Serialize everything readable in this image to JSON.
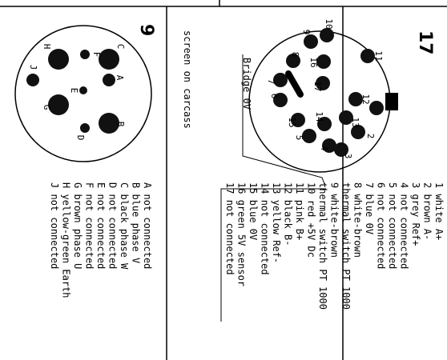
{
  "connector_17": {
    "title": "17",
    "screen_label": "screen on carcass",
    "bridge_label": "Bridge 0V",
    "pins": [
      {
        "n": "1",
        "desc": "white A+"
      },
      {
        "n": "2",
        "desc": "brown A-"
      },
      {
        "n": "3",
        "desc": "grey Ref+"
      },
      {
        "n": "4",
        "desc": "not connected"
      },
      {
        "n": "5",
        "desc": "not connected"
      },
      {
        "n": "6",
        "desc": "not connected"
      },
      {
        "n": "7",
        "desc": "blue 0V"
      },
      {
        "n": "8",
        "desc": "white-brown"
      },
      {
        "n": "",
        "desc": "thermal switch PT 1000"
      },
      {
        "n": "9",
        "desc": "white-brown"
      },
      {
        "n": "",
        "desc": "thermal switch PT 1000"
      },
      {
        "n": "10",
        "desc": "red +5V Dc"
      },
      {
        "n": "11",
        "desc": "pink B+"
      },
      {
        "n": "12",
        "desc": "black B-"
      },
      {
        "n": "13",
        "desc": "yellow Ref-"
      },
      {
        "n": "14",
        "desc": "not connected"
      },
      {
        "n": "15",
        "desc": "blue 0V"
      },
      {
        "n": "16",
        "desc": "green 5V sensor"
      },
      {
        "n": "17",
        "desc": "not connected"
      }
    ]
  },
  "connector_9": {
    "title": "9",
    "pins": [
      {
        "n": "A",
        "desc": "not connected"
      },
      {
        "n": "B",
        "desc": "blue phase V"
      },
      {
        "n": "C",
        "desc": "black phase W"
      },
      {
        "n": "D",
        "desc": "not connected"
      },
      {
        "n": "E",
        "desc": "not connected"
      },
      {
        "n": "F",
        "desc": "not connected"
      },
      {
        "n": "G",
        "desc": "brown phase U"
      },
      {
        "n": "H",
        "desc": "yellow-green Earth"
      },
      {
        "n": "J",
        "desc": "not connected"
      }
    ]
  }
}
